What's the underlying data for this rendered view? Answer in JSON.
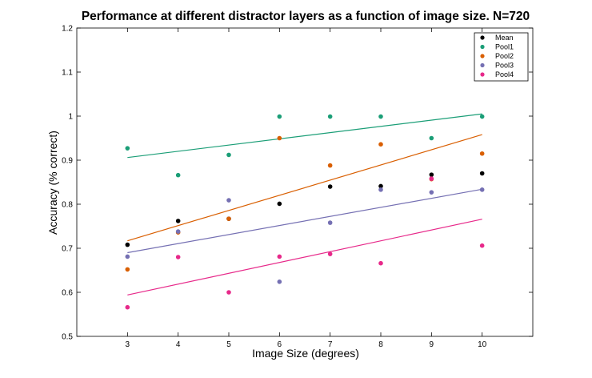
{
  "chart_data": {
    "type": "scatter",
    "title": "Performance at different distractor layers as a function of image size. N=720",
    "xlabel": "Image Size (degrees)",
    "ylabel": "Accuracy (% correct)",
    "xlim": [
      2,
      11
    ],
    "ylim": [
      0.5,
      1.2
    ],
    "xticks": [
      3,
      4,
      5,
      6,
      7,
      8,
      9,
      10
    ],
    "yticks": [
      0.5,
      0.6,
      0.7,
      0.8,
      0.9,
      1,
      1.1,
      1.2
    ],
    "ytick_labels": [
      "0.5",
      "0.6",
      "0.7",
      "0.8",
      "0.9",
      "1",
      "1.1",
      "1.2"
    ],
    "grid": false,
    "legend_position": "top-right",
    "x": [
      3,
      4,
      5,
      6,
      7,
      8,
      9,
      10
    ],
    "series": [
      {
        "name": "Mean",
        "color": "#000000",
        "values": [
          0.708,
          0.762,
          0.767,
          0.801,
          0.84,
          0.841,
          0.867,
          0.87
        ],
        "fit": null
      },
      {
        "name": "Pool1",
        "color": "#1b9e77",
        "values": [
          0.927,
          0.866,
          0.912,
          0.999,
          0.999,
          0.999,
          0.95,
          0.999
        ],
        "fit": [
          0.906,
          1.005
        ]
      },
      {
        "name": "Pool2",
        "color": "#d95f02",
        "values": [
          0.652,
          0.736,
          0.767,
          0.95,
          0.888,
          0.936,
          0.857,
          0.915
        ],
        "fit": [
          0.717,
          0.958
        ]
      },
      {
        "name": "Pool3",
        "color": "#7570b3",
        "values": [
          0.681,
          0.738,
          0.809,
          0.624,
          0.758,
          0.833,
          0.827,
          0.833
        ],
        "fit": [
          0.69,
          0.834
        ]
      },
      {
        "name": "Pool4",
        "color": "#e7298a",
        "values": [
          0.566,
          0.68,
          0.6,
          0.681,
          0.687,
          0.666,
          0.858,
          0.706
        ],
        "fit": [
          0.594,
          0.766
        ]
      }
    ]
  }
}
